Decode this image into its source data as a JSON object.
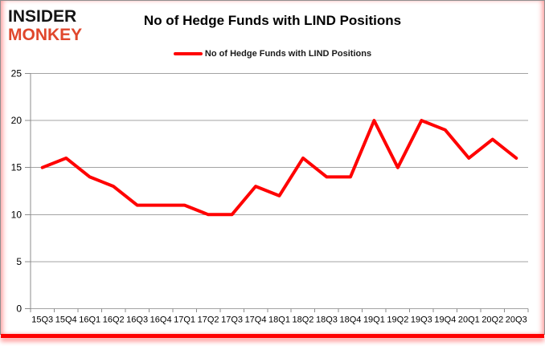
{
  "logo": {
    "line1": "INSIDER",
    "line2": "MONKEY"
  },
  "header": {
    "title": "No of Hedge Funds with LIND Positions"
  },
  "legend": {
    "label": "No of Hedge Funds with LIND Positions"
  },
  "colors": {
    "series": "#ff0000",
    "grid": "#a3a3a3",
    "axis": "#8c8c8c",
    "text": "#000000",
    "logo_black": "#151515",
    "logo_red": "#e0472c",
    "frame_red": "#ff0000"
  },
  "chart_data": {
    "type": "line",
    "title": "No of Hedge Funds with LIND Positions",
    "xlabel": "",
    "ylabel": "",
    "categories": [
      "15Q3",
      "15Q4",
      "16Q1",
      "16Q2",
      "16Q3",
      "16Q4",
      "17Q1",
      "17Q2",
      "17Q3",
      "17Q4",
      "18Q1",
      "18Q2",
      "18Q3",
      "18Q4",
      "19Q1",
      "19Q2",
      "19Q3",
      "19Q4",
      "20Q1",
      "20Q2",
      "20Q3"
    ],
    "series": [
      {
        "name": "No of Hedge Funds with LIND Positions",
        "values": [
          15,
          16,
          14,
          13,
          11,
          11,
          11,
          10,
          10,
          13,
          12,
          16,
          14,
          14,
          20,
          15,
          20,
          19,
          16,
          18,
          16
        ]
      }
    ],
    "ylim": [
      0,
      25
    ],
    "yticks": [
      0,
      5,
      10,
      15,
      20,
      25
    ],
    "grid": true,
    "legend_position": "top"
  }
}
